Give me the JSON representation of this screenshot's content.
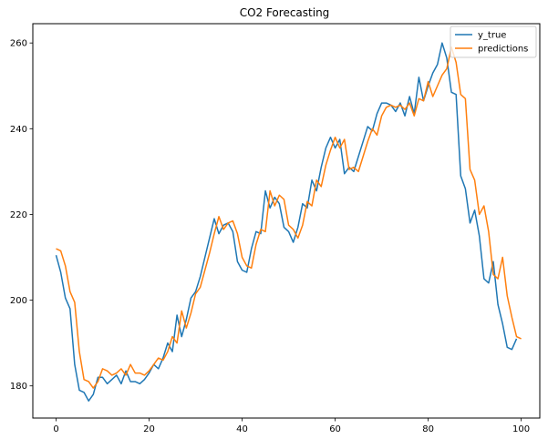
{
  "chart_data": {
    "type": "line",
    "title": "CO2 Forecasting",
    "xlabel": "",
    "ylabel": "",
    "xlim": [
      -5,
      104
    ],
    "ylim": [
      172.5,
      264.5
    ],
    "x_ticks": [
      0,
      20,
      40,
      60,
      80,
      100
    ],
    "y_ticks": [
      180,
      200,
      220,
      240,
      260
    ],
    "grid": false,
    "legend_position": "upper-right",
    "series": [
      {
        "name": "y_true",
        "color": "#1f77b4",
        "values": [
          210.5,
          206.5,
          200.5,
          198.0,
          185.0,
          179.0,
          178.5,
          176.5,
          178.0,
          182.0,
          182.0,
          180.5,
          181.5,
          182.5,
          180.5,
          183.5,
          181.0,
          181.0,
          180.5,
          181.5,
          183.0,
          185.0,
          184.0,
          186.5,
          190.0,
          188.0,
          196.5,
          191.5,
          195.5,
          200.5,
          202.0,
          205.5,
          210.0,
          214.5,
          219.0,
          215.5,
          217.5,
          218.0,
          216.0,
          209.0,
          207.0,
          206.5,
          212.0,
          216.0,
          215.5,
          225.5,
          221.5,
          224.0,
          222.5,
          217.0,
          216.0,
          213.5,
          217.0,
          222.5,
          221.5,
          228.0,
          225.5,
          231.0,
          235.5,
          238.0,
          235.5,
          237.5,
          229.5,
          231.0,
          230.0,
          233.5,
          237.0,
          240.5,
          239.5,
          243.5,
          246.0,
          246.0,
          245.5,
          244.0,
          246.0,
          243.0,
          247.5,
          243.5,
          252.0,
          246.5,
          250.0,
          253.0,
          255.0,
          260.0,
          256.5,
          248.5,
          248.0,
          229.0,
          226.0,
          218.0,
          221.0,
          215.0,
          205.0,
          204.0,
          209.0,
          199.0,
          194.5,
          189.0,
          188.5,
          191.0
        ]
      },
      {
        "name": "predictions",
        "color": "#ff7f0e",
        "values": [
          212.0,
          211.5,
          208.0,
          202.0,
          199.5,
          188.0,
          181.5,
          181.0,
          179.5,
          181.0,
          184.0,
          183.5,
          182.5,
          183.0,
          184.0,
          182.5,
          185.0,
          183.0,
          183.0,
          182.5,
          183.5,
          185.0,
          186.5,
          186.0,
          188.0,
          191.5,
          190.0,
          197.5,
          193.5,
          197.0,
          201.5,
          203.0,
          207.0,
          211.0,
          215.5,
          219.5,
          216.5,
          218.0,
          218.5,
          215.5,
          210.0,
          208.0,
          207.5,
          213.0,
          216.5,
          216.0,
          225.5,
          222.0,
          224.5,
          223.5,
          217.5,
          216.5,
          214.5,
          217.5,
          223.0,
          222.0,
          228.0,
          226.5,
          231.5,
          235.0,
          238.0,
          235.5,
          237.5,
          230.5,
          231.0,
          230.0,
          233.5,
          237.0,
          240.0,
          238.5,
          243.0,
          245.0,
          245.5,
          245.0,
          245.5,
          244.5,
          246.0,
          243.0,
          247.0,
          246.5,
          251.0,
          247.5,
          250.0,
          252.5,
          254.0,
          259.0,
          255.5,
          248.0,
          247.0,
          230.5,
          228.0,
          220.0,
          222.0,
          216.0,
          206.0,
          205.0,
          210.0,
          201.0,
          196.0,
          191.5,
          191.0
        ]
      }
    ]
  }
}
